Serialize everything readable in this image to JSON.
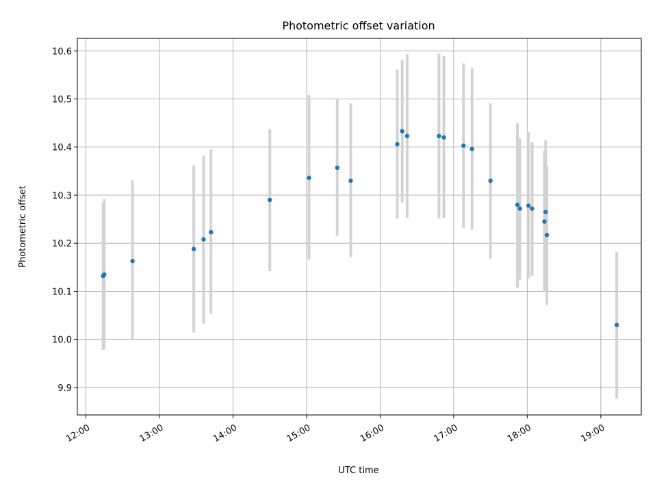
{
  "chart_data": {
    "type": "scatter",
    "title": "Photometric offset variation",
    "xlabel": "UTC time",
    "ylabel": "Photometric offset",
    "x_axis": "time",
    "xlim": [
      "11:53",
      "19:33"
    ],
    "ylim": [
      9.843,
      10.626
    ],
    "x_ticks": [
      "12:00",
      "13:00",
      "14:00",
      "15:00",
      "16:00",
      "17:00",
      "18:00",
      "19:00"
    ],
    "y_ticks": [
      9.9,
      10.0,
      10.1,
      10.2,
      10.3,
      10.4,
      10.5,
      10.6
    ],
    "grid": true,
    "colors": {
      "points": "#1f77b4",
      "errorbars": "#d3d3d3"
    },
    "points": [
      {
        "x": "12:14",
        "y": 10.132,
        "low": 9.978,
        "high": 10.285
      },
      {
        "x": "12:15",
        "y": 10.135,
        "low": 9.98,
        "high": 10.292
      },
      {
        "x": "12:38",
        "y": 10.163,
        "low": 9.998,
        "high": 10.331
      },
      {
        "x": "13:28",
        "y": 10.188,
        "low": 10.014,
        "high": 10.362
      },
      {
        "x": "13:36",
        "y": 10.208,
        "low": 10.033,
        "high": 10.382
      },
      {
        "x": "13:42",
        "y": 10.223,
        "low": 10.053,
        "high": 10.395
      },
      {
        "x": "14:30",
        "y": 10.29,
        "low": 10.142,
        "high": 10.437
      },
      {
        "x": "15:02",
        "y": 10.336,
        "low": 10.166,
        "high": 10.508
      },
      {
        "x": "15:25",
        "y": 10.357,
        "low": 10.215,
        "high": 10.499
      },
      {
        "x": "15:36",
        "y": 10.33,
        "low": 10.171,
        "high": 10.491
      },
      {
        "x": "16:14",
        "y": 10.406,
        "low": 10.251,
        "high": 10.561
      },
      {
        "x": "16:18",
        "y": 10.433,
        "low": 10.285,
        "high": 10.581
      },
      {
        "x": "16:22",
        "y": 10.423,
        "low": 10.253,
        "high": 10.593
      },
      {
        "x": "16:48",
        "y": 10.423,
        "low": 10.252,
        "high": 10.594
      },
      {
        "x": "16:52",
        "y": 10.42,
        "low": 10.253,
        "high": 10.589
      },
      {
        "x": "17:08",
        "y": 10.403,
        "low": 10.232,
        "high": 10.574
      },
      {
        "x": "17:15",
        "y": 10.396,
        "low": 10.228,
        "high": 10.564
      },
      {
        "x": "17:30",
        "y": 10.33,
        "low": 10.168,
        "high": 10.491
      },
      {
        "x": "17:52",
        "y": 10.28,
        "low": 10.108,
        "high": 10.45
      },
      {
        "x": "17:54",
        "y": 10.272,
        "low": 10.124,
        "high": 10.418
      },
      {
        "x": "18:01",
        "y": 10.278,
        "low": 10.127,
        "high": 10.431
      },
      {
        "x": "18:04",
        "y": 10.272,
        "low": 10.132,
        "high": 10.41
      },
      {
        "x": "18:14",
        "y": 10.245,
        "low": 10.1,
        "high": 10.392
      },
      {
        "x": "18:15",
        "y": 10.265,
        "low": 10.117,
        "high": 10.414
      },
      {
        "x": "18:16",
        "y": 10.217,
        "low": 10.072,
        "high": 10.361
      },
      {
        "x": "19:13",
        "y": 10.03,
        "low": 9.877,
        "high": 10.182
      }
    ]
  }
}
